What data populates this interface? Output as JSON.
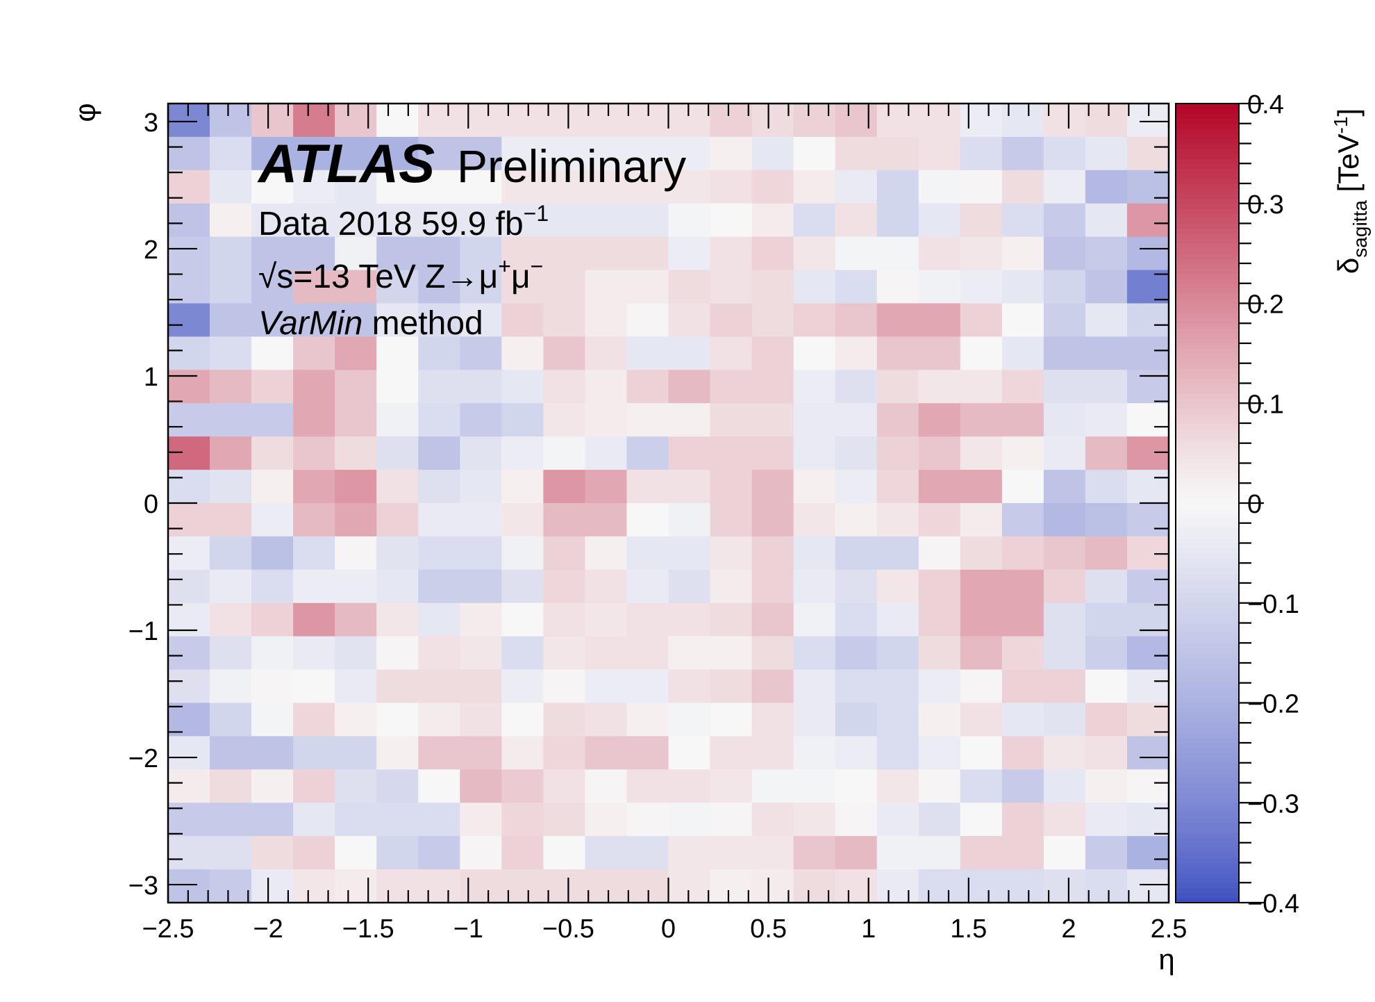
{
  "chart_data": {
    "type": "heatmap",
    "xlabel": "η",
    "ylabel": "φ",
    "zlabel": "δsagitta [TeV-1]",
    "zlabel_main": "δ",
    "zlabel_sub": "sagitta",
    "zlabel_unit": " [TeV",
    "zlabel_unit_sup": "-1",
    "zlabel_unit_close": "]",
    "xlim": [
      -2.5,
      2.5
    ],
    "ylim": [
      -3.1416,
      3.1416
    ],
    "zlim": [
      -0.4,
      0.4
    ],
    "x_ticks": [
      -2.5,
      -2,
      -1.5,
      -1,
      -0.5,
      0,
      0.5,
      1,
      1.5,
      2,
      2.5
    ],
    "x_tick_labels": [
      "−2.5",
      "−2",
      "−1.5",
      "−1",
      "−0.5",
      "0",
      "0.5",
      "1",
      "1.5",
      "2",
      "2.5"
    ],
    "y_ticks": [
      -3,
      -2,
      -1,
      0,
      1,
      2,
      3
    ],
    "y_tick_labels": [
      "−3",
      "−2",
      "−1",
      "0",
      "1",
      "2",
      "3"
    ],
    "z_ticks": [
      -0.4,
      -0.3,
      -0.2,
      -0.1,
      0,
      0.1,
      0.2,
      0.3,
      0.4
    ],
    "z_tick_labels": [
      "−0.4",
      "−0.3",
      "−0.2",
      "−0.1",
      "0",
      "0.1",
      "0.2",
      "0.3",
      "0.4"
    ],
    "colormap": [
      "#3a4cc0",
      "#f7f7f7",
      "#b40426"
    ],
    "nx": 24,
    "ny": 24,
    "rows_top_to_bottom": [
      [
        -0.3,
        -0.15,
        0.1,
        0.22,
        0.1,
        0.0,
        0.05,
        0.05,
        0.05,
        0.05,
        0.05,
        0.05,
        0.05,
        0.08,
        0.06,
        0.08,
        0.1,
        0.05,
        0.05,
        -0.03,
        -0.05,
        0.05,
        0.06,
        -0.03
      ],
      [
        -0.15,
        -0.08,
        -0.2,
        -0.2,
        -0.2,
        -0.2,
        -0.15,
        -0.15,
        -0.03,
        -0.03,
        -0.03,
        -0.03,
        -0.03,
        0.02,
        -0.05,
        0.0,
        0.06,
        0.06,
        0.05,
        -0.08,
        -0.13,
        -0.08,
        -0.05,
        0.06
      ],
      [
        0.08,
        -0.05,
        0.0,
        -0.03,
        -0.05,
        0.0,
        0.0,
        0.0,
        0.04,
        0.04,
        0.04,
        0.04,
        0.04,
        0.05,
        0.07,
        0.03,
        -0.04,
        -0.1,
        -0.01,
        0.01,
        0.06,
        -0.03,
        -0.18,
        -0.16
      ],
      [
        -0.15,
        0.02,
        -0.05,
        -0.05,
        -0.05,
        -0.05,
        -0.05,
        -0.05,
        -0.05,
        -0.05,
        -0.05,
        -0.05,
        -0.01,
        0.0,
        0.03,
        -0.08,
        0.05,
        -0.1,
        -0.05,
        0.06,
        -0.08,
        -0.13,
        -0.05,
        0.18
      ],
      [
        -0.13,
        -0.1,
        -0.15,
        -0.15,
        -0.02,
        -0.15,
        -0.15,
        -0.1,
        0.06,
        0.06,
        0.06,
        0.06,
        -0.03,
        0.05,
        0.08,
        0.04,
        -0.01,
        -0.01,
        0.05,
        0.04,
        0.02,
        -0.15,
        -0.13,
        -0.18
      ],
      [
        -0.13,
        -0.1,
        -0.15,
        0.12,
        0.12,
        -0.1,
        -0.15,
        -0.1,
        0.06,
        0.06,
        0.03,
        0.03,
        0.06,
        0.05,
        0.06,
        -0.05,
        -0.08,
        0.01,
        -0.02,
        -0.03,
        -0.05,
        -0.1,
        -0.15,
        -0.32
      ],
      [
        -0.3,
        -0.15,
        -0.15,
        -0.15,
        -0.15,
        -0.05,
        -0.08,
        -0.05,
        0.08,
        0.06,
        0.03,
        0.01,
        0.05,
        0.08,
        0.06,
        0.08,
        0.1,
        0.15,
        0.15,
        0.08,
        0.0,
        -0.12,
        -0.05,
        -0.1
      ],
      [
        -0.1,
        -0.08,
        0.0,
        0.1,
        0.15,
        0.0,
        -0.1,
        -0.13,
        0.02,
        0.1,
        0.05,
        -0.05,
        -0.05,
        0.05,
        0.08,
        0.0,
        0.03,
        0.1,
        0.1,
        0.0,
        -0.05,
        -0.15,
        -0.15,
        -0.15
      ],
      [
        0.15,
        0.12,
        0.08,
        0.15,
        0.1,
        0.0,
        -0.07,
        -0.07,
        -0.05,
        0.05,
        0.03,
        0.08,
        0.12,
        0.08,
        0.08,
        -0.03,
        -0.07,
        0.06,
        0.04,
        0.04,
        0.07,
        -0.07,
        -0.07,
        -0.13
      ],
      [
        -0.13,
        -0.13,
        -0.13,
        0.15,
        0.1,
        -0.02,
        -0.08,
        -0.13,
        -0.1,
        0.04,
        0.03,
        0.02,
        0.02,
        0.06,
        0.06,
        -0.04,
        -0.04,
        0.1,
        0.15,
        0.12,
        0.12,
        -0.05,
        -0.04,
        0.0
      ],
      [
        0.25,
        0.15,
        0.06,
        0.1,
        0.06,
        -0.07,
        -0.15,
        -0.06,
        -0.03,
        -0.01,
        -0.04,
        -0.12,
        0.08,
        0.08,
        0.08,
        -0.04,
        -0.06,
        0.08,
        0.1,
        0.04,
        0.02,
        -0.04,
        0.12,
        0.18
      ],
      [
        -0.08,
        -0.06,
        0.02,
        0.15,
        0.18,
        0.05,
        -0.07,
        -0.05,
        0.02,
        0.18,
        0.15,
        0.05,
        0.05,
        0.08,
        0.12,
        0.02,
        -0.03,
        0.07,
        0.15,
        0.15,
        0.0,
        -0.15,
        -0.08,
        -0.05
      ],
      [
        0.08,
        0.08,
        -0.03,
        0.12,
        0.15,
        0.08,
        -0.04,
        -0.04,
        0.04,
        0.12,
        0.12,
        0.0,
        -0.02,
        0.08,
        0.12,
        0.04,
        0.02,
        0.04,
        0.07,
        0.03,
        -0.13,
        -0.18,
        -0.16,
        -0.13
      ],
      [
        -0.03,
        -0.1,
        -0.16,
        -0.08,
        0.01,
        -0.06,
        -0.08,
        -0.08,
        -0.02,
        0.08,
        0.02,
        -0.05,
        -0.05,
        0.04,
        0.08,
        -0.05,
        -0.1,
        -0.1,
        0.01,
        0.06,
        0.08,
        0.1,
        0.12,
        0.07
      ],
      [
        -0.07,
        -0.04,
        -0.08,
        -0.03,
        -0.03,
        -0.05,
        -0.12,
        -0.12,
        -0.07,
        0.07,
        0.05,
        -0.04,
        -0.07,
        0.03,
        0.08,
        -0.04,
        -0.07,
        0.04,
        0.08,
        0.15,
        0.15,
        0.08,
        -0.07,
        -0.13
      ],
      [
        -0.04,
        0.05,
        0.08,
        0.18,
        0.12,
        0.04,
        -0.05,
        0.03,
        0.0,
        0.05,
        0.04,
        0.05,
        0.05,
        0.06,
        0.1,
        -0.02,
        -0.08,
        -0.04,
        0.08,
        0.15,
        0.15,
        -0.07,
        -0.1,
        -0.1
      ],
      [
        -0.13,
        -0.07,
        -0.02,
        -0.04,
        -0.06,
        0.01,
        0.05,
        0.04,
        -0.08,
        0.04,
        0.05,
        0.05,
        0.02,
        0.02,
        0.06,
        -0.08,
        -0.13,
        -0.1,
        0.06,
        0.12,
        0.07,
        -0.07,
        -0.12,
        -0.18
      ],
      [
        -0.07,
        -0.02,
        0.01,
        0.0,
        -0.04,
        0.06,
        0.06,
        0.06,
        -0.03,
        0.01,
        -0.03,
        -0.03,
        0.05,
        0.06,
        0.1,
        -0.04,
        -0.08,
        -0.08,
        -0.03,
        0.01,
        0.08,
        0.08,
        0.0,
        -0.04
      ],
      [
        -0.18,
        -0.1,
        -0.01,
        0.07,
        0.02,
        0.0,
        0.03,
        0.05,
        0.0,
        0.06,
        0.05,
        0.02,
        -0.01,
        0.0,
        0.05,
        -0.04,
        -0.1,
        -0.08,
        0.02,
        0.05,
        -0.05,
        -0.06,
        0.08,
        0.06
      ],
      [
        -0.05,
        -0.15,
        -0.15,
        -0.1,
        -0.1,
        0.02,
        0.1,
        0.1,
        0.03,
        0.07,
        0.1,
        0.1,
        0.0,
        0.05,
        0.05,
        -0.02,
        -0.03,
        -0.08,
        -0.03,
        0.0,
        0.08,
        0.04,
        0.05,
        -0.15
      ],
      [
        0.03,
        0.06,
        0.02,
        0.08,
        -0.07,
        -0.09,
        0.0,
        0.12,
        0.09,
        0.05,
        0.01,
        0.05,
        0.05,
        0.04,
        -0.01,
        -0.01,
        0.0,
        0.04,
        0.01,
        -0.08,
        -0.13,
        -0.05,
        0.02,
        0.01
      ],
      [
        -0.13,
        -0.13,
        -0.13,
        -0.05,
        -0.08,
        -0.08,
        -0.08,
        0.03,
        0.07,
        0.06,
        0.02,
        0.01,
        -0.01,
        0.01,
        0.05,
        0.04,
        0.01,
        -0.04,
        -0.07,
        0.0,
        0.08,
        0.05,
        -0.04,
        -0.05
      ],
      [
        -0.07,
        -0.07,
        0.06,
        0.08,
        0.0,
        -0.1,
        -0.13,
        0.01,
        0.08,
        0.0,
        -0.07,
        -0.07,
        0.04,
        0.04,
        0.04,
        0.1,
        0.12,
        -0.02,
        -0.02,
        0.08,
        0.08,
        0.0,
        -0.13,
        -0.2
      ],
      [
        -0.15,
        -0.13,
        -0.04,
        0.04,
        0.03,
        0.05,
        0.05,
        0.06,
        0.06,
        0.06,
        0.06,
        0.06,
        0.04,
        0.02,
        0.03,
        0.06,
        0.05,
        -0.04,
        -0.08,
        -0.08,
        -0.08,
        -0.07,
        -0.08,
        -0.05
      ]
    ],
    "annotations": {
      "atlas": "ATLAS",
      "preliminary": "Preliminary",
      "data_prefix": "Data 2018  59.9 fb",
      "data_sup": "−1",
      "energy_prefix": "√s=13 TeV  Z→μ",
      "mu_plus_sup": "+",
      "mu_minus": "μ",
      "mu_minus_sup": "−",
      "method_italic": "VarMin",
      "method_rest": " method"
    }
  }
}
